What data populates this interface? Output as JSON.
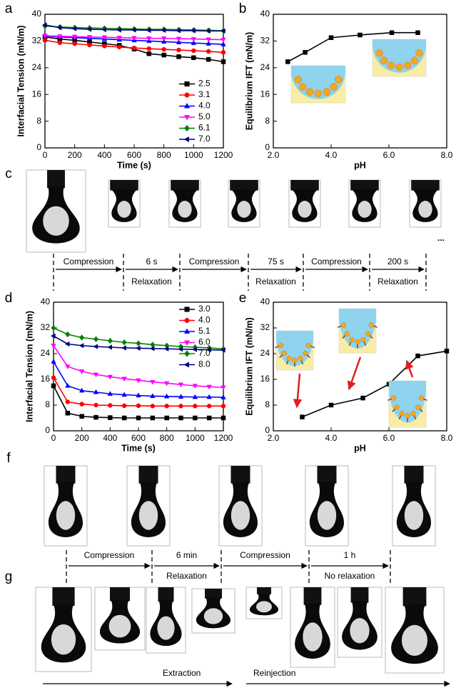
{
  "chart_data": [
    {
      "type": "line",
      "xlabel": "Time (s)",
      "ylabel": "Interfacial Tension (mN/m)",
      "x": [
        0,
        100,
        200,
        300,
        400,
        500,
        600,
        700,
        800,
        900,
        1000,
        1100,
        1200
      ],
      "xlim": [
        0,
        1200
      ],
      "xticks": [
        0,
        200,
        400,
        600,
        800,
        1000,
        1200
      ],
      "ylim": [
        0,
        40
      ],
      "yticks": [
        0,
        8,
        16,
        24,
        32,
        40
      ],
      "legend": "lower right",
      "series": [
        {
          "name": "2.5",
          "color": "#000000",
          "marker": "square",
          "values": [
            33.2,
            32.6,
            32.2,
            31.7,
            31.2,
            30.7,
            29.6,
            28.2,
            27.8,
            27.3,
            27.0,
            26.5,
            25.8
          ]
        },
        {
          "name": "3.1",
          "color": "#ff0000",
          "marker": "circle",
          "values": [
            32.2,
            31.5,
            31.2,
            30.8,
            30.5,
            30.2,
            29.9,
            29.7,
            29.5,
            29.3,
            29.1,
            28.9,
            28.6
          ]
        },
        {
          "name": "4.0",
          "color": "#0000ff",
          "marker": "triangle-up",
          "values": [
            33.5,
            33.2,
            33.0,
            32.8,
            32.6,
            32.4,
            32.2,
            32.0,
            31.8,
            31.6,
            31.4,
            31.2,
            31.0
          ]
        },
        {
          "name": "5.0",
          "color": "#ff00ff",
          "marker": "triangle-down",
          "values": [
            33.6,
            33.4,
            33.3,
            33.2,
            33.1,
            33.0,
            32.9,
            32.8,
            32.8,
            32.7,
            32.6,
            32.5,
            32.4
          ]
        },
        {
          "name": "6.1",
          "color": "#008000",
          "marker": "diamond",
          "values": [
            36.5,
            36.2,
            36.0,
            35.9,
            35.8,
            35.7,
            35.6,
            35.5,
            35.5,
            35.4,
            35.3,
            35.2,
            35.1
          ]
        },
        {
          "name": "7.0",
          "color": "#000080",
          "marker": "triangle-left",
          "values": [
            36.8,
            36.0,
            35.7,
            35.5,
            35.4,
            35.3,
            35.3,
            35.2,
            35.2,
            35.1,
            35.1,
            35.0,
            35.0
          ]
        }
      ]
    },
    {
      "type": "line",
      "xlabel": "pH",
      "ylabel": "Equilibrium IFT (mN/m)",
      "x": [
        2.5,
        3.1,
        4.0,
        5.0,
        6.1,
        7.0
      ],
      "xlim": [
        2,
        8
      ],
      "xticks": [
        {
          "value": 2,
          "label": "2.0"
        },
        {
          "value": 4,
          "label": "4.0"
        },
        {
          "value": 6,
          "label": "6.0"
        },
        {
          "value": 8,
          "label": "8.0"
        }
      ],
      "ylim": [
        0,
        40
      ],
      "yticks": [
        0,
        8,
        16,
        24,
        32,
        40
      ],
      "series": [
        {
          "color": "#000000",
          "marker": "square",
          "values": [
            25.8,
            28.6,
            33.0,
            33.8,
            34.5,
            34.5
          ]
        }
      ]
    },
    {
      "type": "line",
      "xlabel": "Time (s)",
      "ylabel": "Interfacial Tension (mN/m)",
      "x": [
        0,
        100,
        200,
        300,
        400,
        500,
        600,
        700,
        800,
        900,
        1000,
        1100,
        1200
      ],
      "xlim": [
        0,
        1200
      ],
      "xticks": [
        0,
        200,
        400,
        600,
        800,
        1000,
        1200
      ],
      "ylim": [
        0,
        40
      ],
      "yticks": [
        0,
        8,
        16,
        24,
        32,
        40
      ],
      "legend": "upper right",
      "series": [
        {
          "name": "3.0",
          "color": "#000000",
          "marker": "square",
          "values": [
            14.0,
            5.5,
            4.5,
            4.2,
            4.1,
            4.0,
            4.0,
            4.0,
            4.0,
            4.0,
            4.0,
            4.0,
            4.0
          ]
        },
        {
          "name": "4.0",
          "color": "#ff0000",
          "marker": "circle",
          "values": [
            16.5,
            9.0,
            8.3,
            8.0,
            7.9,
            7.8,
            7.8,
            7.7,
            7.7,
            7.7,
            7.7,
            7.7,
            7.7
          ]
        },
        {
          "name": "5.1",
          "color": "#0000ff",
          "marker": "triangle-up",
          "values": [
            21.5,
            14.0,
            12.5,
            12.0,
            11.5,
            11.2,
            11.0,
            10.8,
            10.7,
            10.6,
            10.5,
            10.5,
            10.4
          ]
        },
        {
          "name": "6.0",
          "color": "#ff00ff",
          "marker": "triangle-down",
          "values": [
            26.5,
            20.0,
            18.5,
            17.5,
            16.8,
            16.2,
            15.7,
            15.2,
            14.8,
            14.4,
            14.0,
            13.7,
            13.5
          ]
        },
        {
          "name": "7.0",
          "color": "#008000",
          "marker": "diamond",
          "values": [
            32.0,
            30.0,
            29.0,
            28.5,
            28.0,
            27.5,
            27.2,
            26.8,
            26.5,
            26.2,
            26.0,
            25.8,
            25.5
          ]
        },
        {
          "name": "8.0",
          "color": "#000080",
          "marker": "triangle-left",
          "values": [
            29.5,
            27.0,
            26.5,
            26.2,
            26.0,
            25.8,
            25.7,
            25.6,
            25.5,
            25.4,
            25.3,
            25.2,
            25.1
          ]
        }
      ]
    },
    {
      "type": "line",
      "xlabel": "pH",
      "ylabel": "Equilibrium IFT (mN/m)",
      "x": [
        3.0,
        4.0,
        5.1,
        6.0,
        7.0,
        8.0
      ],
      "xlim": [
        2,
        8
      ],
      "xticks": [
        {
          "value": 2,
          "label": "2.0"
        },
        {
          "value": 4,
          "label": "4.0"
        },
        {
          "value": 6,
          "label": "6.0"
        },
        {
          "value": 8,
          "label": "8.0"
        }
      ],
      "ylim": [
        0,
        40
      ],
      "yticks": [
        0,
        8,
        16,
        24,
        32,
        40
      ],
      "series": [
        {
          "color": "#000000",
          "marker": "square",
          "values": [
            4.3,
            8.0,
            10.2,
            14.5,
            23.3,
            24.8
          ]
        }
      ]
    }
  ],
  "panel_labels": [
    "a",
    "b",
    "c",
    "d",
    "e",
    "f",
    "g"
  ],
  "c_steps": [
    {
      "above": "Compression"
    },
    {
      "above": "6 s",
      "below": "Relaxation"
    },
    {
      "above": "Compression"
    },
    {
      "above": "75 s",
      "below": "Relaxation"
    },
    {
      "above": "Compression"
    },
    {
      "above": "200 s",
      "below": "Relaxation"
    }
  ],
  "c_ellipsis": "...",
  "f_steps": [
    {
      "above": "Compression"
    },
    {
      "above": "6 min",
      "below": "Relaxation"
    },
    {
      "above": "Compression"
    },
    {
      "above": "1 h",
      "below": "No relaxation"
    }
  ],
  "g_steps": [
    "Extraction",
    "Reinjection"
  ]
}
